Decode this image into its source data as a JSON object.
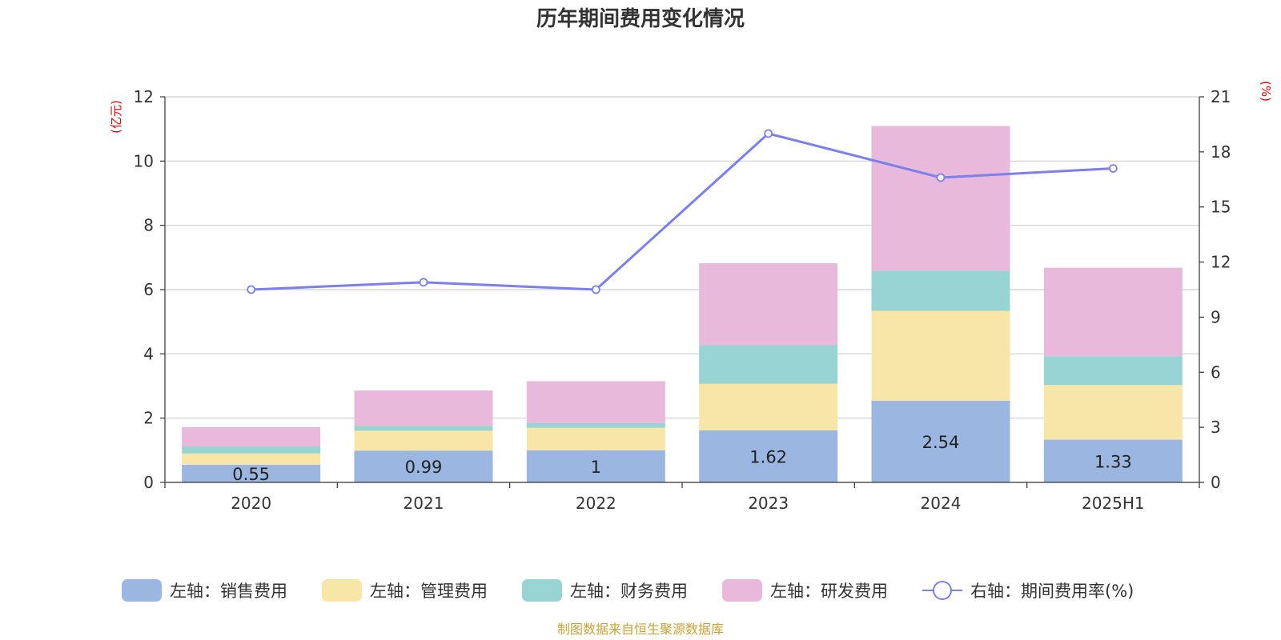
{
  "chart_data": {
    "type": "bar",
    "title": "历年期间费用变化情况",
    "categories": [
      "2020",
      "2021",
      "2022",
      "2023",
      "2024",
      "2025H1"
    ],
    "left_axis": {
      "unit": "(亿元)",
      "min": 0,
      "max": 12,
      "ticks": [
        0,
        2,
        4,
        6,
        8,
        10,
        12
      ]
    },
    "right_axis": {
      "unit": "(%)",
      "min": 0,
      "max": 21,
      "ticks": [
        0,
        3,
        6,
        9,
        12,
        15,
        18,
        21
      ]
    },
    "series": [
      {
        "name": "左轴：销售费用",
        "type": "bar",
        "axis": "left",
        "color": "#9bb7e1",
        "values": [
          0.55,
          0.99,
          1,
          1.62,
          2.54,
          1.33
        ],
        "show_labels": true
      },
      {
        "name": "左轴：管理费用",
        "type": "bar",
        "axis": "left",
        "color": "#f8e6a8",
        "values": [
          0.35,
          0.62,
          0.7,
          1.45,
          2.8,
          1.7
        ],
        "show_labels": false
      },
      {
        "name": "左轴：财务费用",
        "type": "bar",
        "axis": "left",
        "color": "#98d4d4",
        "values": [
          0.22,
          0.15,
          0.15,
          1.2,
          1.25,
          0.9
        ],
        "show_labels": false
      },
      {
        "name": "左轴：研发费用",
        "type": "bar",
        "axis": "left",
        "color": "#e8b9da",
        "values": [
          0.6,
          1.1,
          1.3,
          2.55,
          4.5,
          2.75
        ],
        "show_labels": false
      },
      {
        "name": "右轴：期间费用率(%)",
        "type": "line",
        "axis": "right",
        "color": "#7b7ff0",
        "values": [
          10.5,
          10.9,
          10.5,
          19.0,
          16.6,
          17.1
        ]
      }
    ],
    "grid": true,
    "legend_position": "bottom",
    "source": "制图数据来自恒生聚源数据库"
  }
}
